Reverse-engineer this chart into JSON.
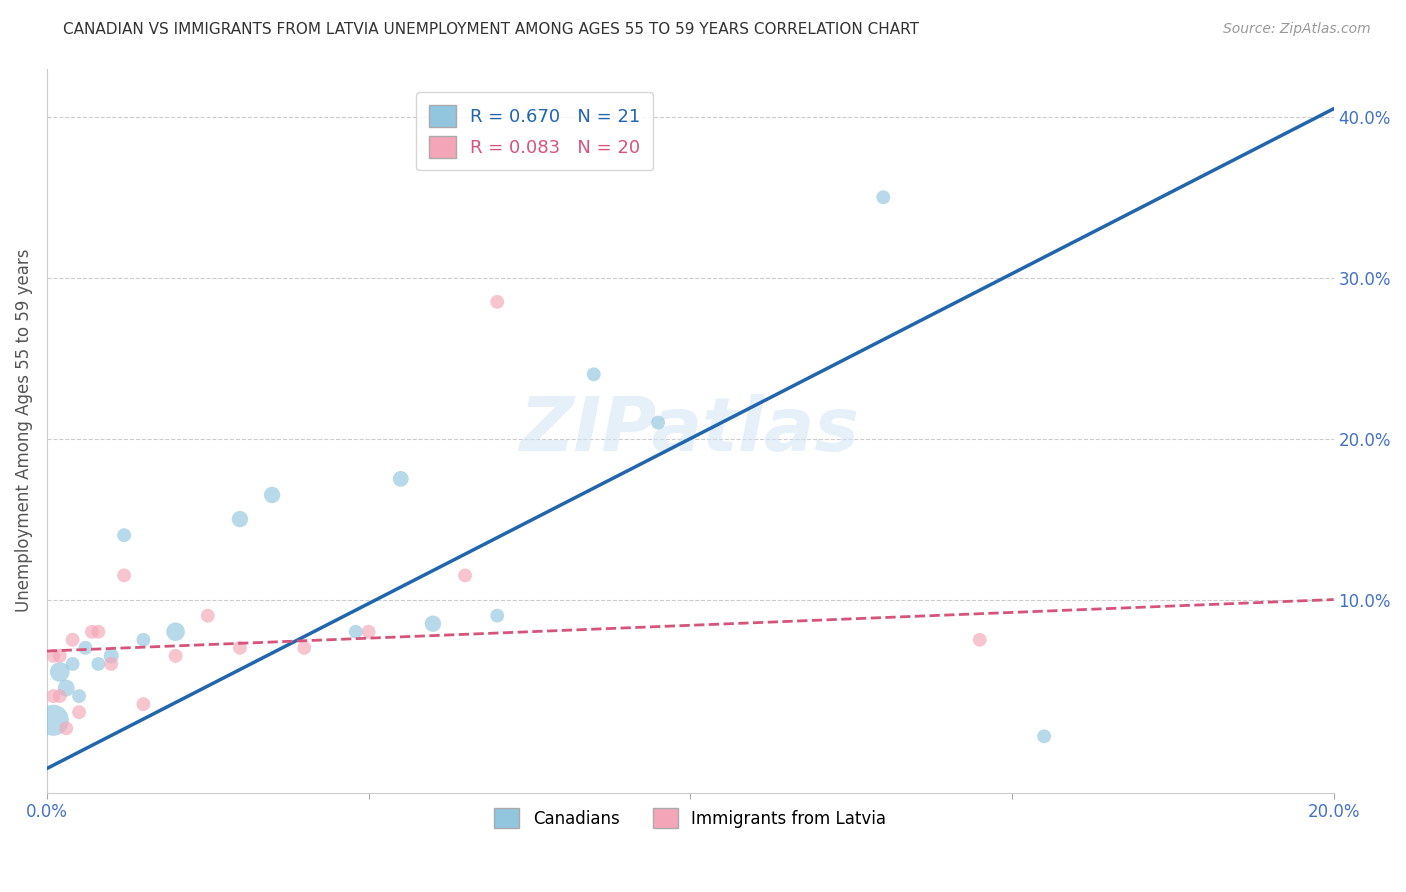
{
  "title": "CANADIAN VS IMMIGRANTS FROM LATVIA UNEMPLOYMENT AMONG AGES 55 TO 59 YEARS CORRELATION CHART",
  "source": "Source: ZipAtlas.com",
  "ylabel": "Unemployment Among Ages 55 to 59 years",
  "xlim": [
    0.0,
    0.2
  ],
  "ylim": [
    -0.02,
    0.43
  ],
  "x_ticks": [
    0.0,
    0.05,
    0.1,
    0.15,
    0.2
  ],
  "x_tick_labels": [
    "0.0%",
    "",
    "",
    "",
    "20.0%"
  ],
  "y_ticks_right": [
    0.1,
    0.2,
    0.3,
    0.4
  ],
  "y_tick_labels_right": [
    "10.0%",
    "20.0%",
    "30.0%",
    "40.0%"
  ],
  "canadians_x": [
    0.001,
    0.002,
    0.003,
    0.004,
    0.005,
    0.006,
    0.008,
    0.01,
    0.012,
    0.015,
    0.02,
    0.03,
    0.035,
    0.048,
    0.055,
    0.06,
    0.07,
    0.085,
    0.095,
    0.13,
    0.155
  ],
  "canadians_y": [
    0.025,
    0.055,
    0.045,
    0.06,
    0.04,
    0.07,
    0.06,
    0.065,
    0.14,
    0.075,
    0.08,
    0.15,
    0.165,
    0.08,
    0.175,
    0.085,
    0.09,
    0.24,
    0.21,
    0.35,
    0.015
  ],
  "canadians_sizes": [
    500,
    200,
    150,
    100,
    100,
    100,
    100,
    120,
    100,
    100,
    180,
    140,
    140,
    100,
    130,
    140,
    100,
    100,
    100,
    100,
    100
  ],
  "latvians_x": [
    0.001,
    0.001,
    0.002,
    0.002,
    0.003,
    0.004,
    0.005,
    0.007,
    0.008,
    0.01,
    0.012,
    0.015,
    0.02,
    0.025,
    0.03,
    0.04,
    0.05,
    0.065,
    0.07,
    0.145
  ],
  "latvians_y": [
    0.04,
    0.065,
    0.065,
    0.04,
    0.02,
    0.075,
    0.03,
    0.08,
    0.08,
    0.06,
    0.115,
    0.035,
    0.065,
    0.09,
    0.07,
    0.07,
    0.08,
    0.115,
    0.285,
    0.075
  ],
  "latvians_sizes": [
    100,
    100,
    100,
    100,
    100,
    100,
    100,
    100,
    100,
    100,
    100,
    100,
    100,
    100,
    100,
    100,
    100,
    100,
    100,
    100
  ],
  "blue_line_x": [
    0.0,
    0.2
  ],
  "blue_line_y": [
    -0.005,
    0.405
  ],
  "pink_line_x": [
    0.0,
    0.2
  ],
  "pink_line_y": [
    0.068,
    0.1
  ],
  "R_canadians": 0.67,
  "N_canadians": 21,
  "R_latvians": 0.083,
  "N_latvians": 20,
  "blue_color": "#92c5de",
  "pink_color": "#f4a6b8",
  "blue_line_color": "#2166ac",
  "pink_line_color": "#d6547a",
  "title_color": "#333333",
  "axis_label_color": "#555555",
  "tick_color": "#4472c4",
  "watermark": "ZIPatlas",
  "legend_label_canadian": "Canadians",
  "legend_label_latvian": "Immigrants from Latvia"
}
